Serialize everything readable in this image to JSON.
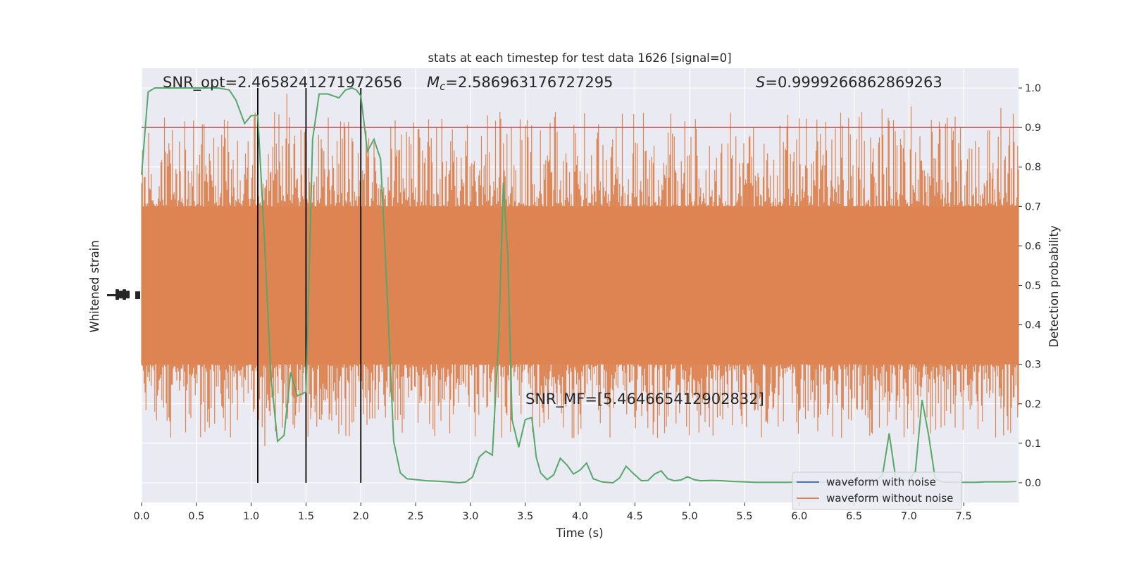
{
  "chart_data": {
    "type": "line",
    "title": "stats at each timestep for test data 1626 [signal=0]",
    "xlabel": "Time (s)",
    "ylabel_left": "Whitened strain",
    "ylabel_right": "Detection probability",
    "xlim": [
      0,
      8.0
    ],
    "xticks": [
      "0.0",
      "0.5",
      "1.0",
      "1.5",
      "2.0",
      "2.5",
      "3.0",
      "3.5",
      "4.0",
      "4.5",
      "5.0",
      "5.5",
      "6.0",
      "6.5",
      "7.0",
      "7.5"
    ],
    "ylim_right": [
      -0.05,
      1.05
    ],
    "yticks_right": [
      "0.0",
      "0.1",
      "0.2",
      "0.3",
      "0.4",
      "0.5",
      "0.6",
      "0.7",
      "0.8",
      "0.9",
      "1.0"
    ],
    "grid": true,
    "legend_position": "lower-right",
    "annotations": {
      "snr_opt": "SNR_opt=2.4658241271972656",
      "mc_symbol": "M",
      "mc_sub": "c",
      "mc_value": "=2.586963176727295",
      "s_symbol": "S",
      "s_value": "=0.9999266862869263",
      "snr_mf": "SNR_MF=[5.464665412902832]"
    },
    "threshold": 0.9,
    "vertical_lines": [
      1.06,
      1.5,
      2.0
    ],
    "colors": {
      "with_noise": "#4c72b0",
      "without_noise": "#dd8452",
      "probability": "#55a868",
      "threshold": "#c44e52",
      "vlines": "#000000",
      "background": "#eaeaf2"
    },
    "series": [
      {
        "name": "waveform with noise",
        "role": "strain",
        "values": []
      },
      {
        "name": "waveform without noise",
        "role": "strain",
        "noise_band_prob": [
          0.3,
          0.7
        ],
        "spike_range_prob": [
          0.08,
          1.0
        ]
      },
      {
        "role": "probability",
        "x": [
          0.0,
          0.06,
          0.12,
          0.2,
          0.3,
          0.4,
          0.5,
          0.6,
          0.7,
          0.8,
          0.86,
          0.94,
          1.0,
          1.06,
          1.12,
          1.18,
          1.24,
          1.3,
          1.36,
          1.42,
          1.5,
          1.56,
          1.62,
          1.7,
          1.8,
          1.86,
          1.92,
          1.96,
          2.0,
          2.06,
          2.12,
          2.18,
          2.24,
          2.3,
          2.36,
          2.42,
          2.5,
          2.6,
          2.7,
          2.8,
          2.9,
          2.96,
          3.02,
          3.08,
          3.14,
          3.2,
          3.26,
          3.3,
          3.34,
          3.38,
          3.44,
          3.5,
          3.56,
          3.6,
          3.64,
          3.7,
          3.76,
          3.82,
          3.88,
          3.94,
          4.0,
          4.06,
          4.12,
          4.2,
          4.3,
          4.36,
          4.42,
          4.48,
          4.56,
          4.62,
          4.68,
          4.74,
          4.8,
          4.86,
          4.92,
          4.98,
          5.04,
          5.1,
          5.2,
          5.3,
          5.4,
          5.5,
          5.6,
          5.7,
          5.8,
          5.9,
          6.0,
          6.1,
          6.2,
          6.3,
          6.4,
          6.5,
          6.6,
          6.7,
          6.76,
          6.82,
          6.88,
          6.94,
          7.0,
          7.06,
          7.12,
          7.18,
          7.24,
          7.3,
          7.4,
          7.5,
          7.6,
          7.7,
          7.8,
          7.9,
          7.98
        ],
        "y": [
          0.78,
          0.99,
          1.0,
          1.0,
          1.0,
          1.0,
          1.0,
          1.0,
          1.0,
          0.995,
          0.97,
          0.91,
          0.93,
          0.93,
          0.62,
          0.27,
          0.105,
          0.12,
          0.28,
          0.22,
          0.23,
          0.87,
          0.985,
          0.985,
          0.975,
          0.995,
          1.0,
          0.995,
          0.98,
          0.84,
          0.87,
          0.82,
          0.48,
          0.105,
          0.025,
          0.01,
          0.008,
          0.005,
          0.004,
          0.002,
          0.0,
          0.002,
          0.015,
          0.065,
          0.08,
          0.07,
          0.38,
          0.76,
          0.58,
          0.16,
          0.09,
          0.16,
          0.165,
          0.065,
          0.025,
          0.008,
          0.02,
          0.062,
          0.045,
          0.022,
          0.032,
          0.05,
          0.01,
          0.002,
          0.0,
          0.012,
          0.042,
          0.025,
          0.005,
          0.006,
          0.022,
          0.03,
          0.01,
          0.005,
          0.007,
          0.015,
          0.008,
          0.005,
          0.006,
          0.005,
          0.003,
          0.002,
          0.001,
          0.001,
          0.001,
          0.001,
          0.002,
          0.001,
          0.001,
          0.002,
          0.0,
          0.0,
          0.002,
          0.004,
          0.02,
          0.125,
          0.01,
          0.008,
          0.005,
          0.03,
          0.21,
          0.12,
          0.01,
          0.002,
          0.001,
          0.001,
          0.001,
          0.002,
          0.002,
          0.002,
          0.003
        ]
      }
    ]
  }
}
